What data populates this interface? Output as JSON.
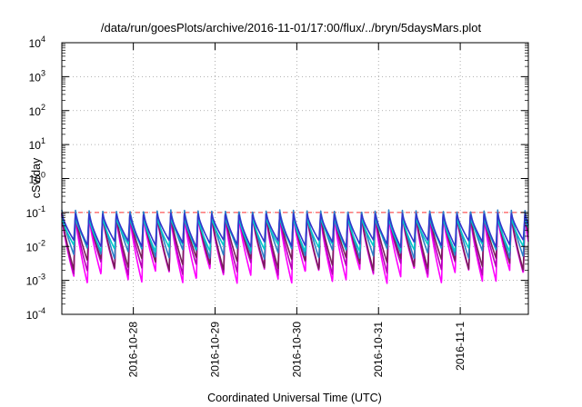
{
  "chart_data": {
    "type": "line",
    "title": "/data/run/goesPlots/archive/2016-11-01/17:00/flux/../bryn/5daysMars.plot",
    "xlabel": "Coordinated Universal Time (UTC)",
    "ylabel": "cSv/day",
    "x_scale": "time",
    "x_range": [
      "2016-10-27T03:00",
      "2016-11-01T20:00"
    ],
    "x_ticks": [
      {
        "date": "2016-10-28",
        "label": "2016-10-28"
      },
      {
        "date": "2016-10-29",
        "label": "2016-10-29"
      },
      {
        "date": "2016-10-30",
        "label": "2016-10-30"
      },
      {
        "date": "2016-10-31",
        "label": "2016-10-31"
      },
      {
        "date": "2016-11-01",
        "label": "2016-11-1"
      }
    ],
    "y_scale": "log",
    "ylim": [
      0.0001,
      10000
    ],
    "y_ticks": [
      {
        "base": "10",
        "exp": "-4"
      },
      {
        "base": "10",
        "exp": "-3"
      },
      {
        "base": "10",
        "exp": "-2"
      },
      {
        "base": "10",
        "exp": "-1"
      },
      {
        "base": "10",
        "exp": "0"
      },
      {
        "base": "10",
        "exp": "1"
      },
      {
        "base": "10",
        "exp": "2"
      },
      {
        "base": "10",
        "exp": "3"
      },
      {
        "base": "10",
        "exp": "4"
      }
    ],
    "grid": true,
    "grid_style": "dotted",
    "reference_line": {
      "y": 0.1,
      "color": "#ff3030",
      "style": "dashed"
    },
    "pattern": {
      "description_free": true,
      "cycles_per_day": 6,
      "pulse_peak_time": "2016-10-27T03:00"
    },
    "series": [
      {
        "color": "#ff00ff",
        "peak": 0.085,
        "floor": 0.0013
      },
      {
        "color": "#b800b8",
        "peak": 0.09,
        "floor": 0.0022
      },
      {
        "color": "#7a1f5c",
        "peak": 0.1,
        "floor": 0.003
      },
      {
        "color": "#2d7fc7",
        "peak": 0.12,
        "floor": 0.006
      },
      {
        "color": "#00c8c8",
        "peak": 0.075,
        "floor": 0.009
      },
      {
        "color": "#3333cc",
        "peak": 0.095,
        "floor": 0.012
      }
    ]
  }
}
